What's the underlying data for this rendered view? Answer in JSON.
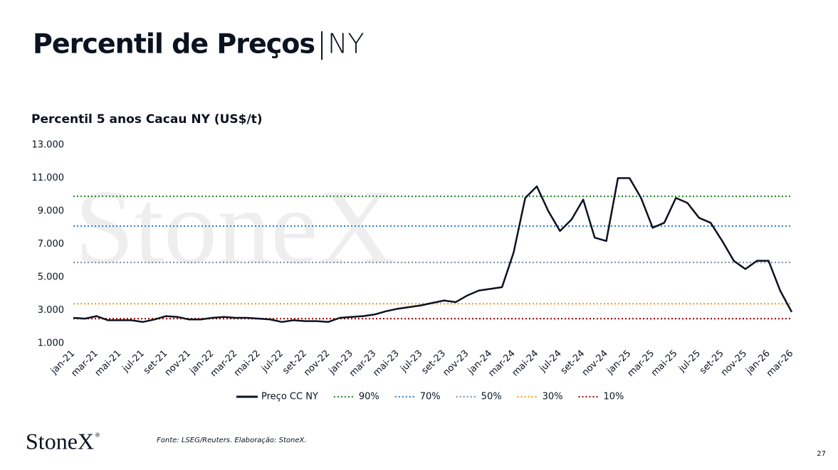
{
  "title": "Percentil de Preços",
  "title_suffix": "NY",
  "watermark": "StoneX",
  "chart_data": {
    "type": "line",
    "title": "Percentil 5 anos Cacau NY (US$/t)",
    "categories": [
      "jan-21",
      null,
      "mar-21",
      null,
      "mai-21",
      null,
      "jul-21",
      null,
      "set-21",
      null,
      "nov-21",
      null,
      "jan-22",
      null,
      "mar-22",
      null,
      "mai-22",
      null,
      "jul-22",
      null,
      "set-22",
      null,
      "nov-22",
      null,
      "jan-23",
      null,
      "mar-23",
      null,
      "mai-23",
      null,
      "jul-23",
      null,
      "set-23",
      null,
      "nov-23",
      null,
      "jan-24",
      null,
      "mar-24",
      null,
      "mai-24",
      null,
      "jul-24",
      null,
      "set-24",
      null,
      "nov-24",
      null,
      "jan-25",
      null,
      "mar-25",
      null,
      "mai-25",
      null,
      "jul-25",
      null,
      "set-25",
      null,
      "nov-25",
      null,
      "jan-26",
      null,
      "mar-26"
    ],
    "series": [
      {
        "name": "Preço CC NY",
        "color": "#0b1220",
        "values": [
          2550,
          2500,
          2650,
          2400,
          2400,
          2400,
          2300,
          2450,
          2650,
          2600,
          2450,
          2450,
          2550,
          2600,
          2550,
          2550,
          2500,
          2450,
          2300,
          2400,
          2350,
          2350,
          2300,
          2550,
          2600,
          2650,
          2750,
          2950,
          3100,
          3200,
          3300,
          3450,
          3600,
          3500,
          3900,
          4200,
          4300,
          4400,
          6500,
          9800,
          10500,
          9000,
          7800,
          8500,
          9700,
          7400,
          7200,
          11000,
          11000,
          9800,
          8000,
          8300,
          9800,
          9500,
          8600,
          8300,
          7200,
          6000,
          5500,
          6000,
          6000,
          4200,
          2900
        ]
      }
    ],
    "reference_lines": [
      {
        "name": "90%",
        "color": "#2a8a2a",
        "value": 9900
      },
      {
        "name": "70%",
        "color": "#3a7fc8",
        "value": 8100
      },
      {
        "name": "50%",
        "color": "#8090b0",
        "value": 5900
      },
      {
        "name": "30%",
        "color": "#f0a020",
        "value": 3400
      },
      {
        "name": "10%",
        "color": "#a01515",
        "value": 2500
      }
    ],
    "ylim": [
      1000,
      13000
    ],
    "yticks": [
      {
        "value": 1000,
        "label": "1.000"
      },
      {
        "value": 3000,
        "label": "3.000"
      },
      {
        "value": 5000,
        "label": "5.000"
      },
      {
        "value": 7000,
        "label": "7.000"
      },
      {
        "value": 9000,
        "label": "9.000"
      },
      {
        "value": 11000,
        "label": "11.000"
      },
      {
        "value": 13000,
        "label": "13.000"
      }
    ],
    "grid": false,
    "legend": "bottom"
  },
  "source": "Fonte: LSEG/Reuters. Elaboração: StoneX.",
  "logo": "StoneX",
  "logo_mark": "®",
  "page_number": "27"
}
